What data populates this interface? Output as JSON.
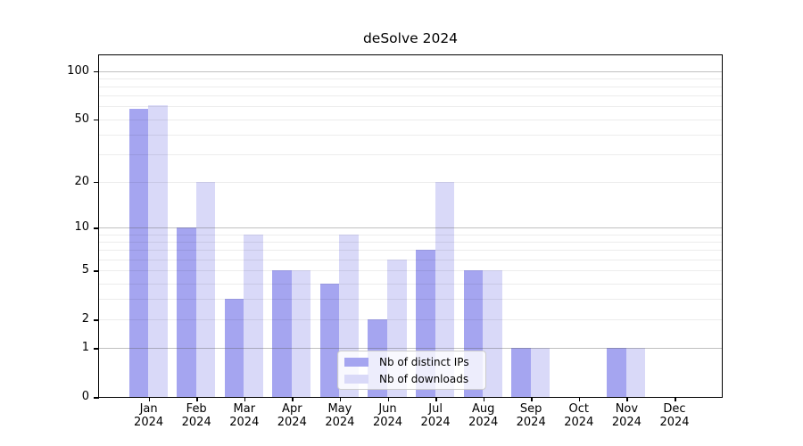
{
  "title": "deSolve 2024",
  "colors": {
    "bar_distinct_ips": "#a5a5f0",
    "bar_downloads": "#d9d9f8",
    "axis": "#000000",
    "grid_minor": "#ececec",
    "grid_major": "#c4c4c4",
    "legend_border": "#cccccc"
  },
  "legend": {
    "position": "bottom-center",
    "items": [
      "Nb of distinct IPs",
      "Nb of downloads"
    ]
  },
  "chart_data": {
    "type": "bar",
    "title": "deSolve 2024",
    "categories": [
      "Jan 2024",
      "Feb 2024",
      "Mar 2024",
      "Apr 2024",
      "May 2024",
      "Jun 2024",
      "Jul 2024",
      "Aug 2024",
      "Sep 2024",
      "Oct 2024",
      "Nov 2024",
      "Dec 2024"
    ],
    "x_months": [
      "Jan",
      "Feb",
      "Mar",
      "Apr",
      "May",
      "Jun",
      "Jul",
      "Aug",
      "Sep",
      "Oct",
      "Nov",
      "Dec"
    ],
    "x_year": "2024",
    "series": [
      {
        "name": "Nb of distinct IPs",
        "color": "#a5a5f0",
        "values": [
          58,
          10,
          3,
          5,
          4,
          2,
          7,
          5,
          1,
          0,
          1,
          0
        ]
      },
      {
        "name": "Nb of downloads",
        "color": "#d9d9f8",
        "values": [
          61,
          20,
          9,
          5,
          9,
          6,
          20,
          5,
          1,
          0,
          1,
          0
        ]
      }
    ],
    "xlabel": "",
    "ylabel": "",
    "y_scale": "log1p",
    "ylim": [
      0,
      125
    ],
    "y_ticks": [
      0,
      1,
      2,
      5,
      10,
      20,
      50,
      100
    ],
    "y_grid_light": [
      2,
      3,
      4,
      5,
      6,
      7,
      8,
      9,
      20,
      30,
      40,
      50,
      60,
      70,
      80,
      90
    ],
    "y_grid_dark": [
      1,
      10,
      100
    ],
    "grid": true,
    "legend_position": "bottom-center"
  }
}
